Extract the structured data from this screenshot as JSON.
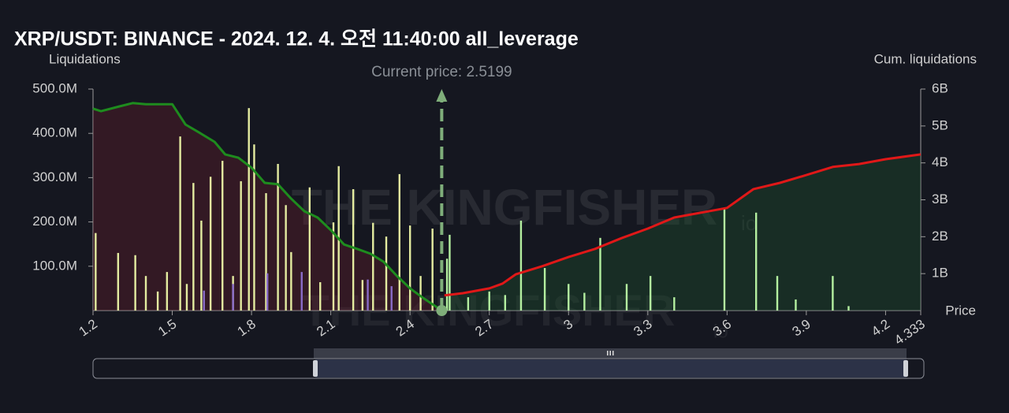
{
  "chart_data": {
    "type": "bar",
    "title": "XRP/USDT: BINANCE - 2024. 12. 4. 오전 11:40:00 all_leverage",
    "ylabel": "Liquidations",
    "y2label": "Cum. liquidations",
    "xlabel": "Price",
    "watermark": "THE KINGFISHER",
    "watermark_suffix": "io",
    "annotation": {
      "text": "Current price: 2.5199",
      "x": 2.5199,
      "color": "#7fae7a"
    },
    "xlim": [
      1.2,
      4.333
    ],
    "xticks": [
      1.2,
      1.5,
      1.8,
      2.1,
      2.4,
      2.7,
      3,
      3.3,
      3.6,
      3.9,
      4.2,
      4.333
    ],
    "ylim": [
      0,
      500000000
    ],
    "yticks": [
      {
        "value": 100000000,
        "label": "100.0M"
      },
      {
        "value": 200000000,
        "label": "200.0M"
      },
      {
        "value": 300000000,
        "label": "300.0M"
      },
      {
        "value": 400000000,
        "label": "400.0M"
      },
      {
        "value": 500000000,
        "label": "500.0M"
      }
    ],
    "y2lim": [
      0,
      6000000000
    ],
    "y2ticks": [
      {
        "value": 1000000000,
        "label": "1B"
      },
      {
        "value": 2000000000,
        "label": "2B"
      },
      {
        "value": 3000000000,
        "label": "3B"
      },
      {
        "value": 4000000000,
        "label": "4B"
      },
      {
        "value": 5000000000,
        "label": "5B"
      },
      {
        "value": 6000000000,
        "label": "6B"
      }
    ],
    "series": [
      {
        "type": "bar",
        "color": "#e4eca0",
        "x": [
          1.21,
          1.295,
          1.36,
          1.4,
          1.445,
          1.48,
          1.53,
          1.555,
          1.58,
          1.61,
          1.645,
          1.69,
          1.73,
          1.76,
          1.79,
          1.81,
          1.855,
          1.9,
          1.93,
          1.95,
          2.02,
          2.06,
          2.11,
          2.13,
          2.185,
          2.22,
          2.26,
          2.31,
          2.36,
          2.4,
          2.44,
          2.485
        ],
        "values": [
          175000000,
          130000000,
          125000000,
          78000000,
          43000000,
          87000000,
          393000000,
          60000000,
          288000000,
          203000000,
          302000000,
          338000000,
          78000000,
          292000000,
          457000000,
          375000000,
          265000000,
          331000000,
          238000000,
          132000000,
          278000000,
          64000000,
          199000000,
          326000000,
          274000000,
          69000000,
          198000000,
          167000000,
          308000000,
          192000000,
          78000000,
          185000000
        ]
      },
      {
        "type": "bar",
        "color": "#8a6cc8",
        "x": [
          1.62,
          1.73,
          1.86,
          1.99,
          2.24,
          2.33
        ],
        "values": [
          45000000,
          60000000,
          84000000,
          87000000,
          70000000,
          55000000
        ]
      },
      {
        "type": "bar",
        "color": "#b4f0a0",
        "x": [
          2.54,
          2.55,
          2.62,
          2.7,
          2.76,
          2.82,
          2.91,
          3,
          3.06,
          3.12,
          3.22,
          3.31,
          3.4,
          3.59,
          3.71,
          3.79,
          3.86,
          4,
          4.06
        ],
        "values": [
          117000000,
          171000000,
          30000000,
          43000000,
          35000000,
          203000000,
          96000000,
          60000000,
          40000000,
          164000000,
          60000000,
          78000000,
          30000000,
          230000000,
          221000000,
          78000000,
          25000000,
          78000000,
          10000000
        ]
      },
      {
        "type": "line",
        "axis": "y2",
        "color": "#1e8c1e",
        "fill": "rgba(110,30,45,0.35)",
        "x": [
          1.2,
          1.23,
          1.3,
          1.35,
          1.4,
          1.5,
          1.55,
          1.6,
          1.66,
          1.7,
          1.75,
          1.8,
          1.85,
          1.9,
          1.95,
          2,
          2.05,
          2.1,
          2.15,
          2.2,
          2.25,
          2.3,
          2.35,
          2.4,
          2.45,
          2.5199
        ],
        "values": [
          5470000000,
          5400000000,
          5530000000,
          5620000000,
          5590000000,
          5590000000,
          5040000000,
          4830000000,
          4570000000,
          4230000000,
          4140000000,
          3870000000,
          3460000000,
          3420000000,
          3030000000,
          2690000000,
          2520000000,
          2180000000,
          1790000000,
          1670000000,
          1540000000,
          1320000000,
          940000000,
          600000000,
          340000000,
          0
        ]
      },
      {
        "type": "line",
        "axis": "y2",
        "color": "#e01818",
        "fill": "rgba(30,80,45,0.4)",
        "x": [
          2.53,
          2.6,
          2.7,
          2.75,
          2.8,
          2.9,
          3,
          3.1,
          3.2,
          3.3,
          3.4,
          3.5,
          3.6,
          3.7,
          3.8,
          3.9,
          4,
          4.1,
          4.2,
          4.333
        ],
        "values": [
          410000000,
          470000000,
          600000000,
          730000000,
          980000000,
          1200000000,
          1450000000,
          1670000000,
          1960000000,
          2220000000,
          2520000000,
          2650000000,
          2780000000,
          3290000000,
          3460000000,
          3670000000,
          3890000000,
          3970000000,
          4100000000,
          4230000000
        ]
      }
    ]
  }
}
